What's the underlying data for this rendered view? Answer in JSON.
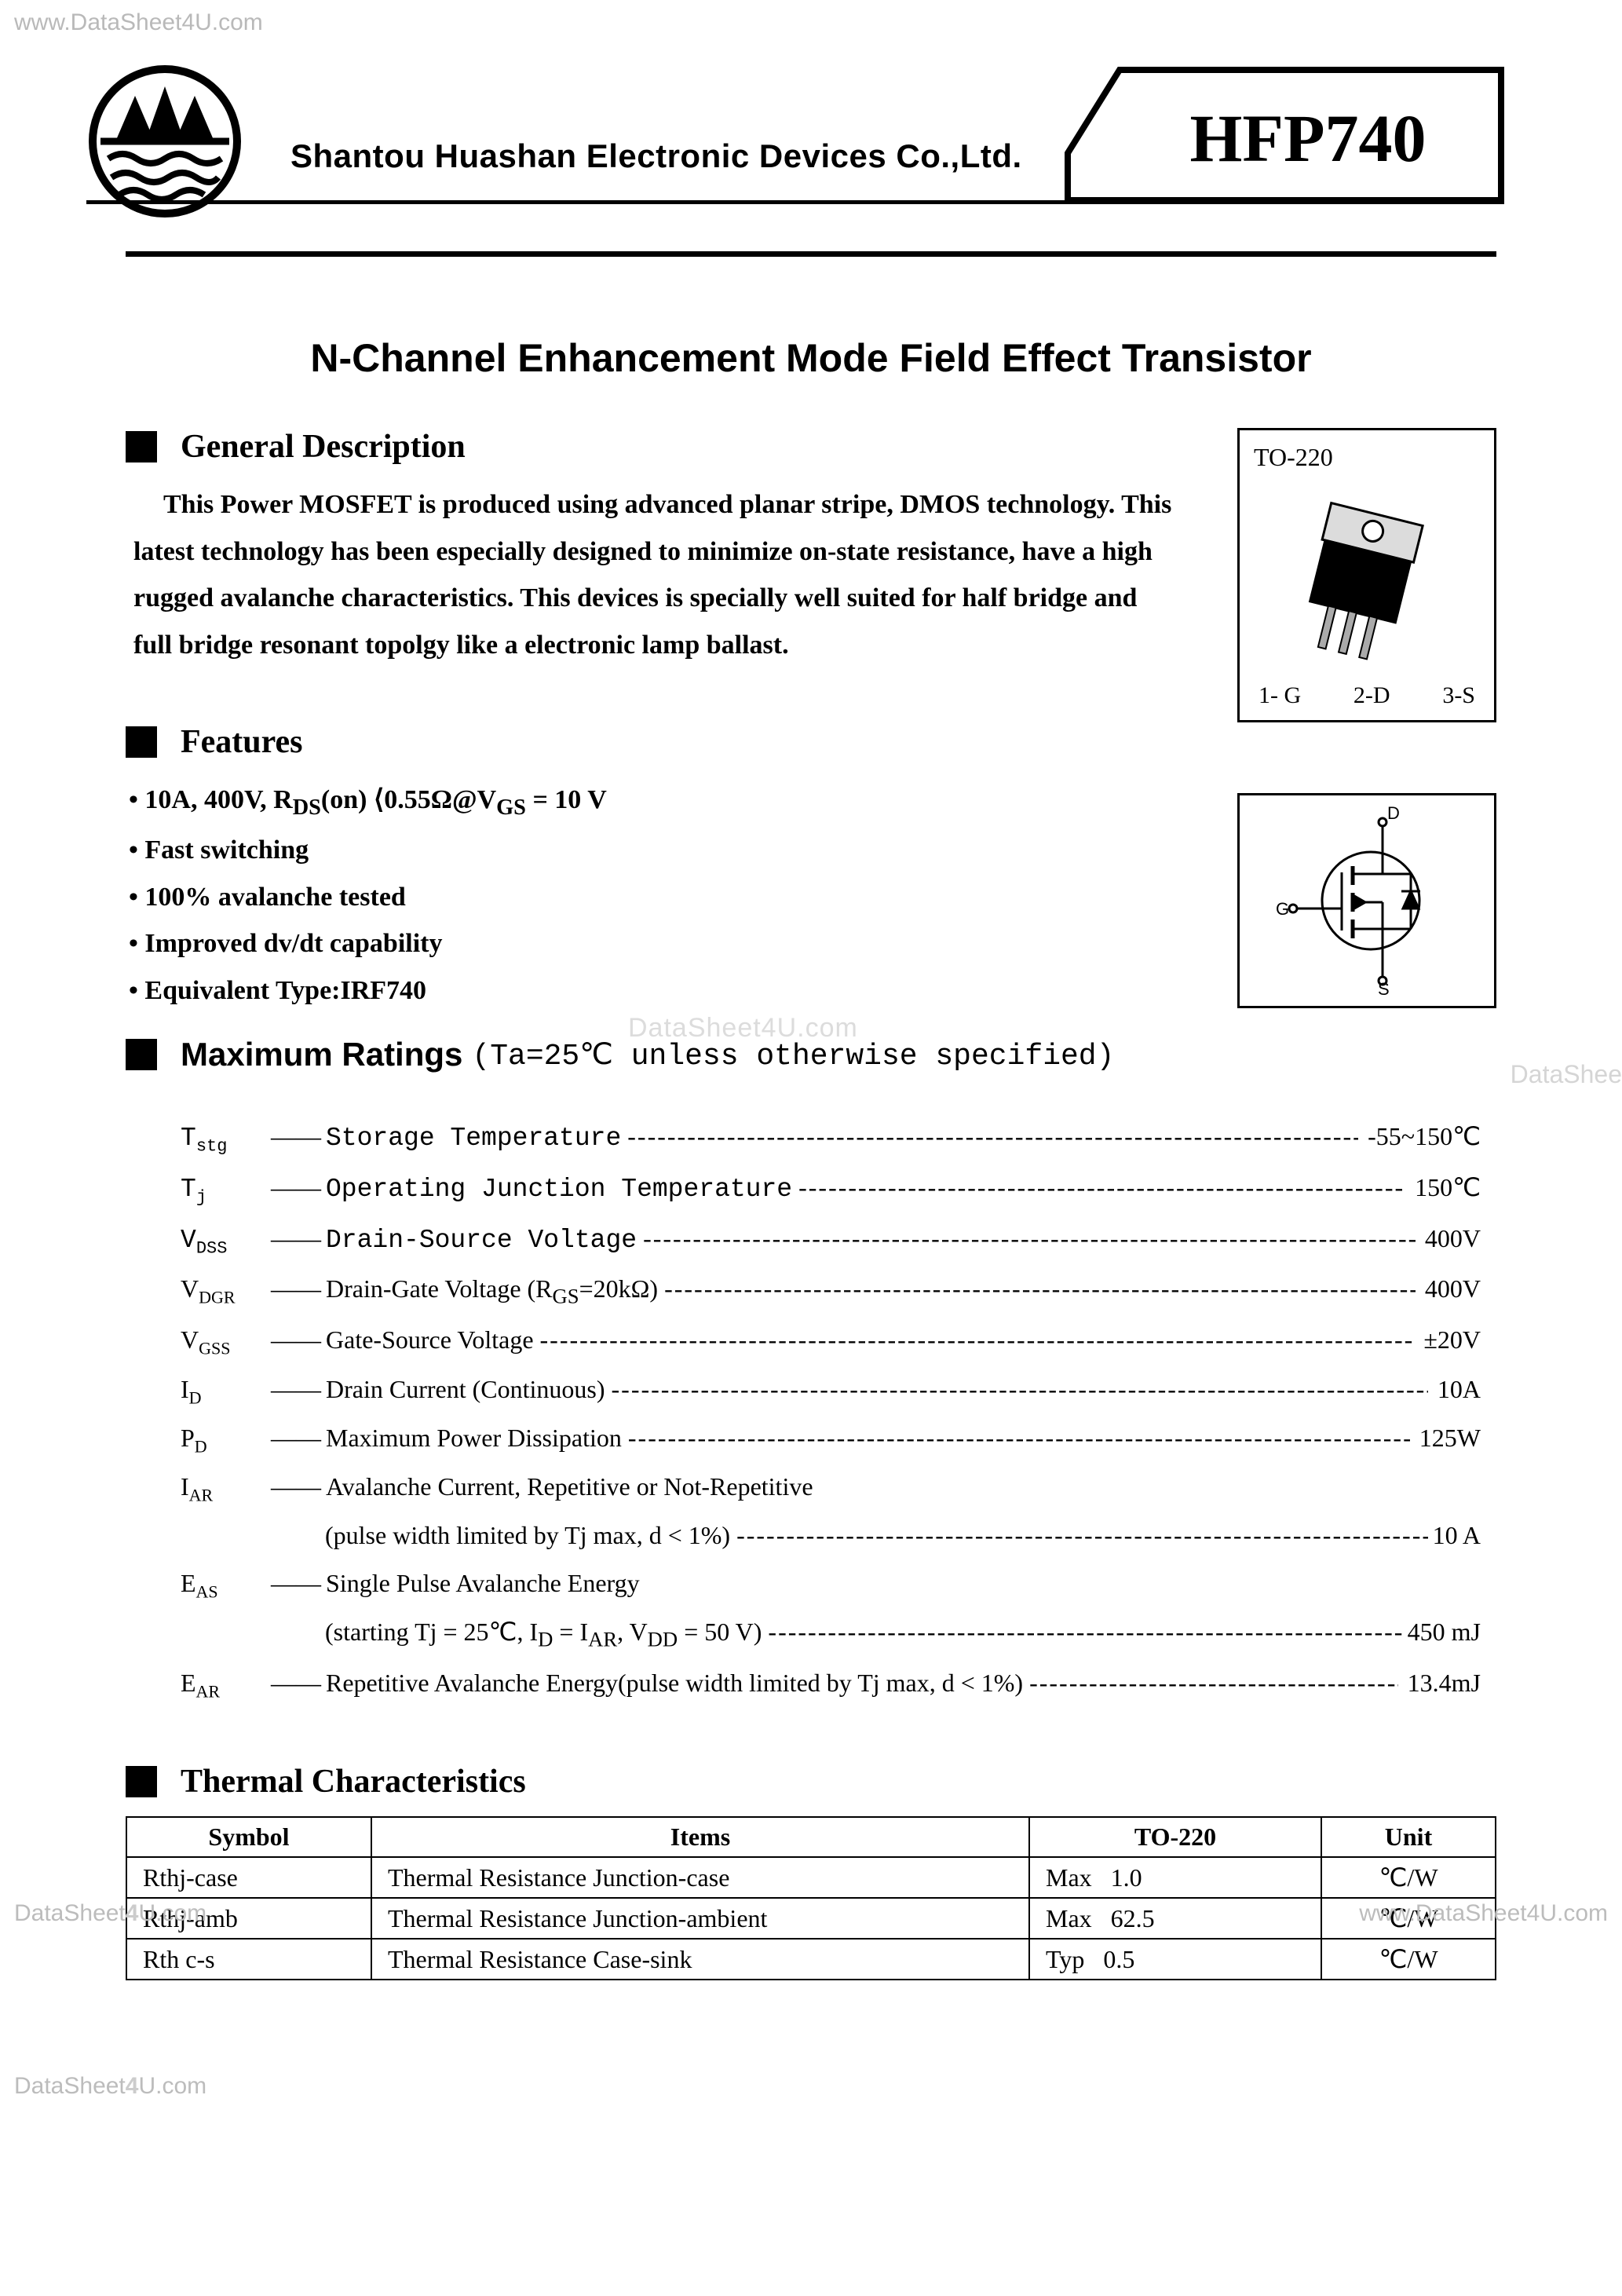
{
  "watermarks": {
    "top_left": "www.DataSheet4U.com",
    "center": "DataSheet4U.com",
    "right_cut": "DataShee",
    "bottom_left": "DataSheet4U.com",
    "bottom_right": "www.DataSheet4U.com",
    "footer": "DataSheet4U.com"
  },
  "header": {
    "company": "Shantou Huashan Electronic Devices Co.,Ltd.",
    "part_number": "HFP740"
  },
  "title": "N-Channel Enhancement Mode Field Effect Transistor",
  "sections": {
    "general_description": {
      "heading": "General Description",
      "text": "This Power MOSFET is produced using advanced planar stripe, DMOS technology. This latest technology has been especially designed to minimize on-state resistance, have a high rugged avalanche characteristics. This devices is specially well suited for half bridge and full bridge resonant topolgy like a electronic lamp ballast."
    },
    "features": {
      "heading": "Features",
      "items_display": {
        "main_spec_prefix": "10A, 400V, R",
        "main_spec_sub1": "DS",
        "main_spec_mid": "(on) ⟨0.55Ω@V",
        "main_spec_sub2": "GS",
        "main_spec_suffix": " = 10 V"
      },
      "items": [
        "Fast switching",
        "100% avalanche tested",
        "Improved dv/dt capability",
        "Equivalent Type:IRF740"
      ]
    },
    "maximum_ratings": {
      "heading": "Maximum Ratings",
      "condition": "(Ta=25℃ unless otherwise specified)",
      "rows": [
        {
          "symbol": "T",
          "sub": "stg",
          "desc": "Storage Temperature",
          "value": "-55~150℃",
          "mono": true
        },
        {
          "symbol": "T",
          "sub": "j",
          "desc": "Operating Junction Temperature",
          "value": "150℃",
          "mono": true
        },
        {
          "symbol": "V",
          "sub": "DSS",
          "desc": "Drain-Source Voltage",
          "value": "400V",
          "mono": true
        },
        {
          "symbol": "V",
          "sub": "DGR",
          "desc": "Drain-Gate Voltage (R<sub>GS</sub>=20kΩ)",
          "value": "400V"
        },
        {
          "symbol": "V",
          "sub": "GSS",
          "desc": "Gate-Source Voltage",
          "value": "±20V"
        },
        {
          "symbol": "I",
          "sub": "D",
          "desc": "Drain Current (Continuous)",
          "value": "10A"
        },
        {
          "symbol": "P",
          "sub": "D",
          "desc": "Maximum Power Dissipation",
          "value": "125W"
        },
        {
          "symbol": "I",
          "sub": "AR",
          "desc": "Avalanche Current, Repetitive or Not-Repetitive",
          "sub_desc": "(pulse width limited by Tj max, d < 1%)",
          "value": "10 A"
        },
        {
          "symbol": "E",
          "sub": "AS",
          "desc": "Single Pulse Avalanche Energy",
          "sub_desc": "(starting Tj = 25℃, I<sub>D</sub> = I<sub>AR</sub>, V<sub>DD</sub> = 50 V)",
          "value": "450 mJ"
        },
        {
          "symbol": "E",
          "sub": "AR",
          "desc": "Repetitive Avalanche Energy(pulse width limited by Tj max, d < 1%)",
          "value": "13.4mJ"
        }
      ]
    },
    "thermal": {
      "heading": "Thermal Characteristics",
      "columns": [
        "Symbol",
        "Items",
        "TO-220",
        "Unit"
      ],
      "rows": [
        {
          "symbol": "Rthj-case",
          "item": "Thermal Resistance Junction-case",
          "pkg": "Max   1.0",
          "unit": "℃/W"
        },
        {
          "symbol": "Rthj-amb",
          "item": "Thermal Resistance Junction-ambient",
          "pkg": "Max   62.5",
          "unit": "℃/W"
        },
        {
          "symbol": "Rth c-s",
          "item": "Thermal Resistance Case-sink",
          "pkg": "Typ   0.5",
          "unit": "℃/W"
        }
      ]
    }
  },
  "package": {
    "name": "TO-220",
    "pins": [
      "1- G",
      "2-D",
      "3-S"
    ],
    "symbol_labels": {
      "gate": "G",
      "drain": "D",
      "source": "S"
    }
  },
  "style": {
    "text_color": "#000000",
    "bg_color": "#ffffff",
    "watermark_color": "#bcbcbc",
    "header_rule_width": 7,
    "title_fontsize": 50,
    "section_fontsize": 42,
    "body_fontsize": 34,
    "table_fontsize": 32,
    "box_border_width": 3
  }
}
